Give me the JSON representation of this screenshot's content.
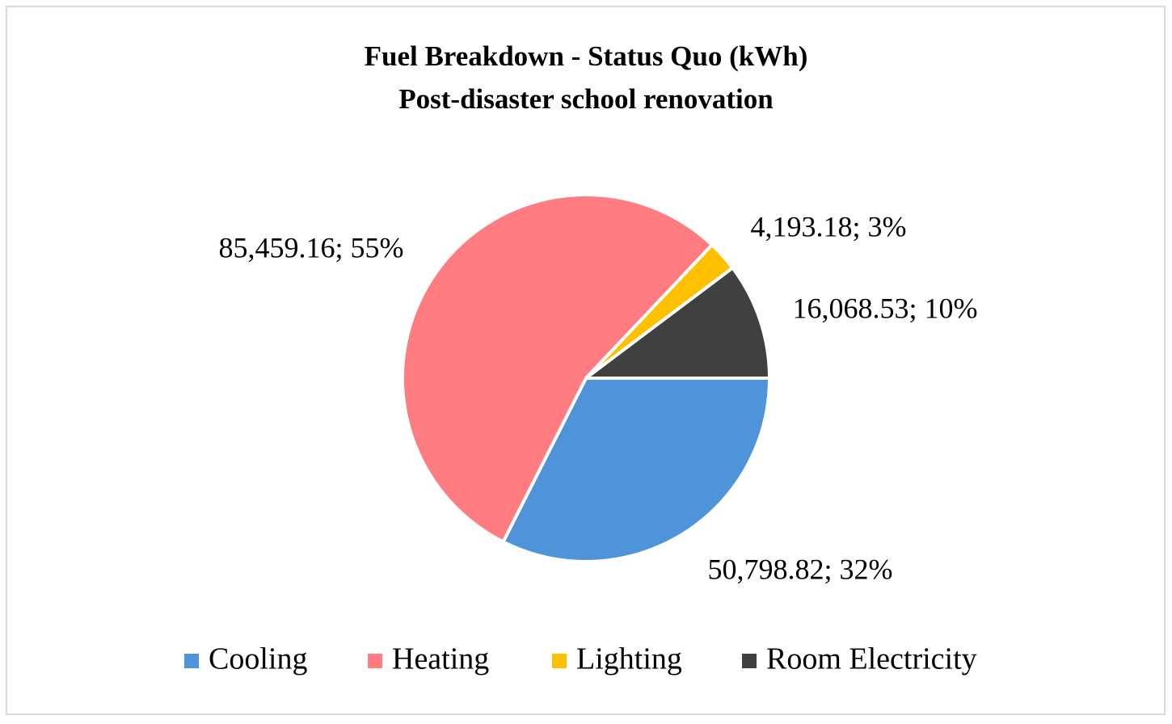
{
  "chart_data": {
    "type": "pie",
    "title": "Fuel Breakdown - Status Quo (kWh)",
    "subtitle": "Post-disaster school renovation",
    "categories": [
      "Cooling",
      "Heating",
      "Lighting",
      "Room Electricity"
    ],
    "values": [
      50798.82,
      85459.16,
      4193.18,
      16068.53
    ],
    "value_labels": [
      "50,798.82; 32%",
      "85,459.16; 55%",
      "4,193.18; 3%",
      "16,068.53; 10%"
    ],
    "colors": [
      "#4f94d8",
      "#ff7c80",
      "#ffc000",
      "#404040"
    ],
    "legend": "bottom"
  }
}
